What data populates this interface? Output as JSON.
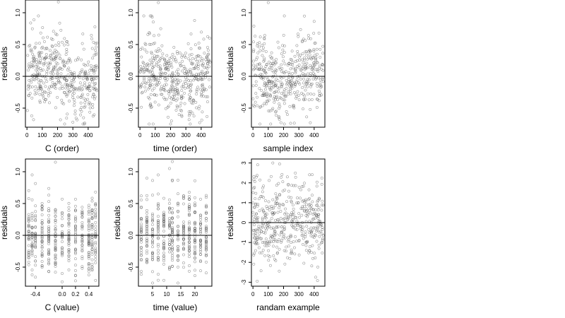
{
  "chart_data": [
    {
      "type": "scatter",
      "xlabel": "C (order)",
      "ylabel": "residuals",
      "xlim": [
        -10,
        470
      ],
      "ylim": [
        -0.8,
        1.2
      ],
      "x_ticks": [
        0,
        100,
        200,
        300,
        400
      ],
      "y_ticks": [
        -0.5,
        0.0,
        0.5,
        1.0
      ],
      "y_tick_labels": [
        "-0.5",
        "0.0",
        "0.5",
        "1.0"
      ],
      "hline": 0,
      "n_points": 450,
      "points_summary": "open circles, residuals mostly within -0.7..0.7, max about 1.17 near x=200"
    },
    {
      "type": "scatter",
      "xlabel": "time (order)",
      "ylabel": "residuals",
      "xlim": [
        -10,
        470
      ],
      "ylim": [
        -0.8,
        1.2
      ],
      "x_ticks": [
        0,
        100,
        200,
        300,
        400
      ],
      "y_ticks": [
        -0.5,
        0.0,
        0.5,
        1.0
      ],
      "y_tick_labels": [
        "-0.5",
        "0.0",
        "0.5",
        "1.0"
      ],
      "hline": 0,
      "n_points": 450
    },
    {
      "type": "scatter",
      "xlabel": "sample index",
      "ylabel": "residuals",
      "xlim": [
        -10,
        470
      ],
      "ylim": [
        -0.8,
        1.2
      ],
      "x_ticks": [
        0,
        100,
        200,
        300,
        400
      ],
      "y_ticks": [
        -0.5,
        0.0,
        0.5,
        1.0
      ],
      "y_tick_labels": [
        "-0.5",
        "0.0",
        "0.5",
        "1.0"
      ],
      "hline": 0,
      "n_points": 450
    },
    {
      "type": "scatter",
      "xlabel": "C (value)",
      "ylabel": "residuals",
      "xlim": [
        -0.55,
        0.55
      ],
      "ylim": [
        -0.8,
        1.2
      ],
      "x_ticks": [
        -0.4,
        0.0,
        0.2,
        0.4
      ],
      "x_tick_labels": [
        "-0.4",
        "0.0",
        "0.2",
        "0.4"
      ],
      "y_ticks": [
        -0.5,
        0.0,
        0.5,
        1.0
      ],
      "y_tick_labels": [
        "-0.5",
        "0.0",
        "0.5",
        "1.0"
      ],
      "hline": 0,
      "x_values_discrete": [
        -0.5,
        -0.45,
        -0.4,
        -0.3,
        -0.2,
        -0.1,
        0.0,
        0.1,
        0.2,
        0.3,
        0.4,
        0.45,
        0.5
      ],
      "n_points": 450
    },
    {
      "type": "scatter",
      "xlabel": "time (value)",
      "ylabel": "residuals",
      "xlim": [
        0,
        26
      ],
      "ylim": [
        -0.8,
        1.2
      ],
      "x_ticks": [
        5,
        10,
        15,
        20
      ],
      "y_ticks": [
        -0.5,
        0.0,
        0.5,
        1.0
      ],
      "y_tick_labels": [
        "-0.5",
        "0.0",
        "0.5",
        "1.0"
      ],
      "hline": 0,
      "x_values_discrete": [
        1,
        3,
        5,
        7,
        9,
        11,
        12,
        14,
        16,
        18,
        20,
        22,
        24
      ],
      "n_points": 450
    },
    {
      "type": "scatter",
      "xlabel": "randam example",
      "ylabel": "residuals",
      "xlim": [
        -10,
        470
      ],
      "ylim": [
        -3.2,
        3.2
      ],
      "x_ticks": [
        0,
        100,
        200,
        300,
        400
      ],
      "y_ticks": [
        -3,
        -2,
        -1,
        0,
        1,
        2,
        3
      ],
      "y_tick_labels": [
        "-3",
        "-2",
        "-1",
        "0",
        "1",
        "2",
        "3"
      ],
      "hline": 0,
      "n_points": 450,
      "points_summary": "random normal residuals, max about 3.0 near x=130"
    }
  ]
}
